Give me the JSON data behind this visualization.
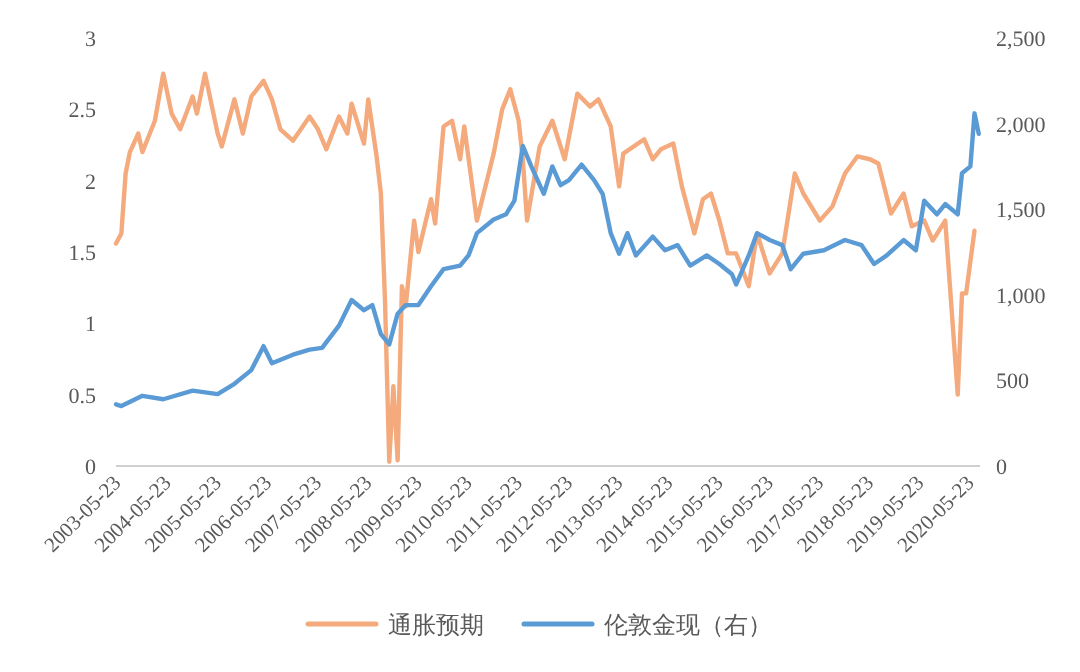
{
  "chart_data": {
    "type": "line",
    "legend": "bottom",
    "xlim": [
      "2003-05-23",
      "2020-08-10"
    ],
    "xticks": [
      "2003-05-23",
      "2004-05-23",
      "2005-05-23",
      "2006-05-23",
      "2007-05-23",
      "2008-05-23",
      "2009-05-23",
      "2010-05-23",
      "2011-05-23",
      "2012-05-23",
      "2013-05-23",
      "2014-05-23",
      "2015-05-23",
      "2016-05-23",
      "2017-05-23",
      "2018-05-23",
      "2019-05-23",
      "2020-05-23"
    ],
    "ylim": [
      0,
      3
    ],
    "yticks": [
      0,
      0.5,
      1,
      1.5,
      2,
      2.5,
      3
    ],
    "y2lim": [
      0,
      2500
    ],
    "y2ticks": [
      0,
      500,
      {
        "value": 1000,
        "label": "1,000"
      },
      {
        "value": 1500,
        "label": "1,500"
      },
      {
        "value": 2000,
        "label": "2,000"
      },
      {
        "value": 2500,
        "label": "2,500"
      }
    ],
    "series": [
      {
        "name": "通胀预期",
        "color": "#f4aa7c",
        "x": [
          "2003-05-23",
          "2003-07",
          "2003-08",
          "2003-09",
          "2003-11",
          "2003-12",
          "2004-03",
          "2004-05",
          "2004-07",
          "2004-09",
          "2004-12",
          "2005-01",
          "2005-03",
          "2005-06",
          "2005-07",
          "2005-10",
          "2005-12",
          "2006-02",
          "2006-05",
          "2006-07",
          "2006-09",
          "2006-12",
          "2007-04",
          "2007-06",
          "2007-08",
          "2007-11",
          "2008-01",
          "2008-02",
          "2008-05",
          "2008-06",
          "2008-08",
          "2008-09",
          "2008-10",
          "2008-11",
          "2008-12",
          "2009-01",
          "2009-02",
          "2009-03",
          "2009-05",
          "2009-06",
          "2009-09",
          "2009-10",
          "2009-12",
          "2010-02",
          "2010-04",
          "2010-05",
          "2010-08",
          "2010-12",
          "2011-02",
          "2011-04",
          "2011-06",
          "2011-07",
          "2011-08",
          "2011-11",
          "2012-02",
          "2012-05",
          "2012-08",
          "2012-11",
          "2013-01",
          "2013-04",
          "2013-06",
          "2013-07",
          "2013-12",
          "2014-02",
          "2014-04",
          "2014-07",
          "2014-09",
          "2014-12",
          "2015-02",
          "2015-04",
          "2015-06",
          "2015-08",
          "2015-10",
          "2016-01",
          "2016-03",
          "2016-06",
          "2016-09",
          "2016-12",
          "2017-02",
          "2017-06",
          "2017-09",
          "2017-12",
          "2018-03",
          "2018-06",
          "2018-08",
          "2018-11",
          "2019-02",
          "2019-04",
          "2019-07",
          "2019-09",
          "2019-12",
          "2020-03",
          "2020-04",
          "2020-05",
          "2020-07"
        ],
        "values": [
          1.56,
          1.63,
          2.05,
          2.2,
          2.33,
          2.2,
          2.42,
          2.75,
          2.47,
          2.36,
          2.59,
          2.47,
          2.75,
          2.33,
          2.24,
          2.57,
          2.33,
          2.59,
          2.7,
          2.57,
          2.36,
          2.28,
          2.45,
          2.36,
          2.22,
          2.45,
          2.33,
          2.54,
          2.26,
          2.57,
          2.17,
          1.91,
          1.16,
          0.03,
          0.56,
          0.04,
          1.26,
          1.12,
          1.72,
          1.5,
          1.87,
          1.7,
          2.38,
          2.42,
          2.15,
          2.38,
          1.72,
          2.19,
          2.5,
          2.64,
          2.42,
          2.15,
          1.72,
          2.24,
          2.42,
          2.15,
          2.61,
          2.52,
          2.57,
          2.38,
          1.96,
          2.19,
          2.29,
          2.15,
          2.22,
          2.26,
          1.96,
          1.63,
          1.87,
          1.91,
          1.72,
          1.49,
          1.49,
          1.26,
          1.63,
          1.35,
          1.49,
          2.05,
          1.91,
          1.72,
          1.82,
          2.05,
          2.17,
          2.15,
          2.12,
          1.77,
          1.91,
          1.68,
          1.72,
          1.58,
          1.72,
          0.5,
          1.21,
          1.21,
          1.65
        ]
      },
      {
        "name": "伦敦金现（右）",
        "color": "#5b9bd5",
        "axis": "y2",
        "x": [
          "2003-05-23",
          "2003-07",
          "2003-12",
          "2004-05",
          "2004-12",
          "2005-06",
          "2005-10",
          "2006-02",
          "2006-05",
          "2006-07",
          "2006-12",
          "2007-04",
          "2007-07",
          "2007-11",
          "2008-02",
          "2008-05",
          "2008-07",
          "2008-09",
          "2008-11",
          "2009-01",
          "2009-03",
          "2009-06",
          "2009-09",
          "2009-12",
          "2010-04",
          "2010-06",
          "2010-08",
          "2010-12",
          "2011-03",
          "2011-05",
          "2011-07",
          "2011-09",
          "2011-12",
          "2012-02",
          "2012-04",
          "2012-06",
          "2012-09",
          "2012-12",
          "2013-02",
          "2013-04",
          "2013-06",
          "2013-08",
          "2013-10",
          "2014-02",
          "2014-05",
          "2014-08",
          "2014-11",
          "2015-03",
          "2015-06",
          "2015-09",
          "2015-10",
          "2016-01",
          "2016-03",
          "2016-06",
          "2016-09",
          "2016-11",
          "2017-02",
          "2017-07",
          "2017-12",
          "2018-04",
          "2018-07",
          "2018-10",
          "2019-02",
          "2019-05",
          "2019-07",
          "2019-10",
          "2019-12",
          "2020-03",
          "2020-04",
          "2020-06",
          "2020-07",
          "2020-08"
        ],
        "values": [
          360,
          350,
          410,
          390,
          440,
          420,
          480,
          560,
          700,
          600,
          650,
          680,
          690,
          820,
          970,
          910,
          940,
          770,
          710,
          890,
          940,
          940,
          1050,
          1150,
          1170,
          1230,
          1360,
          1440,
          1470,
          1550,
          1870,
          1750,
          1590,
          1750,
          1640,
          1670,
          1760,
          1670,
          1590,
          1360,
          1240,
          1360,
          1230,
          1340,
          1260,
          1290,
          1170,
          1230,
          1180,
          1120,
          1060,
          1230,
          1360,
          1320,
          1290,
          1150,
          1240,
          1260,
          1320,
          1290,
          1180,
          1230,
          1320,
          1260,
          1550,
          1470,
          1530,
          1470,
          1710,
          1750,
          2060,
          1940
        ]
      }
    ]
  }
}
